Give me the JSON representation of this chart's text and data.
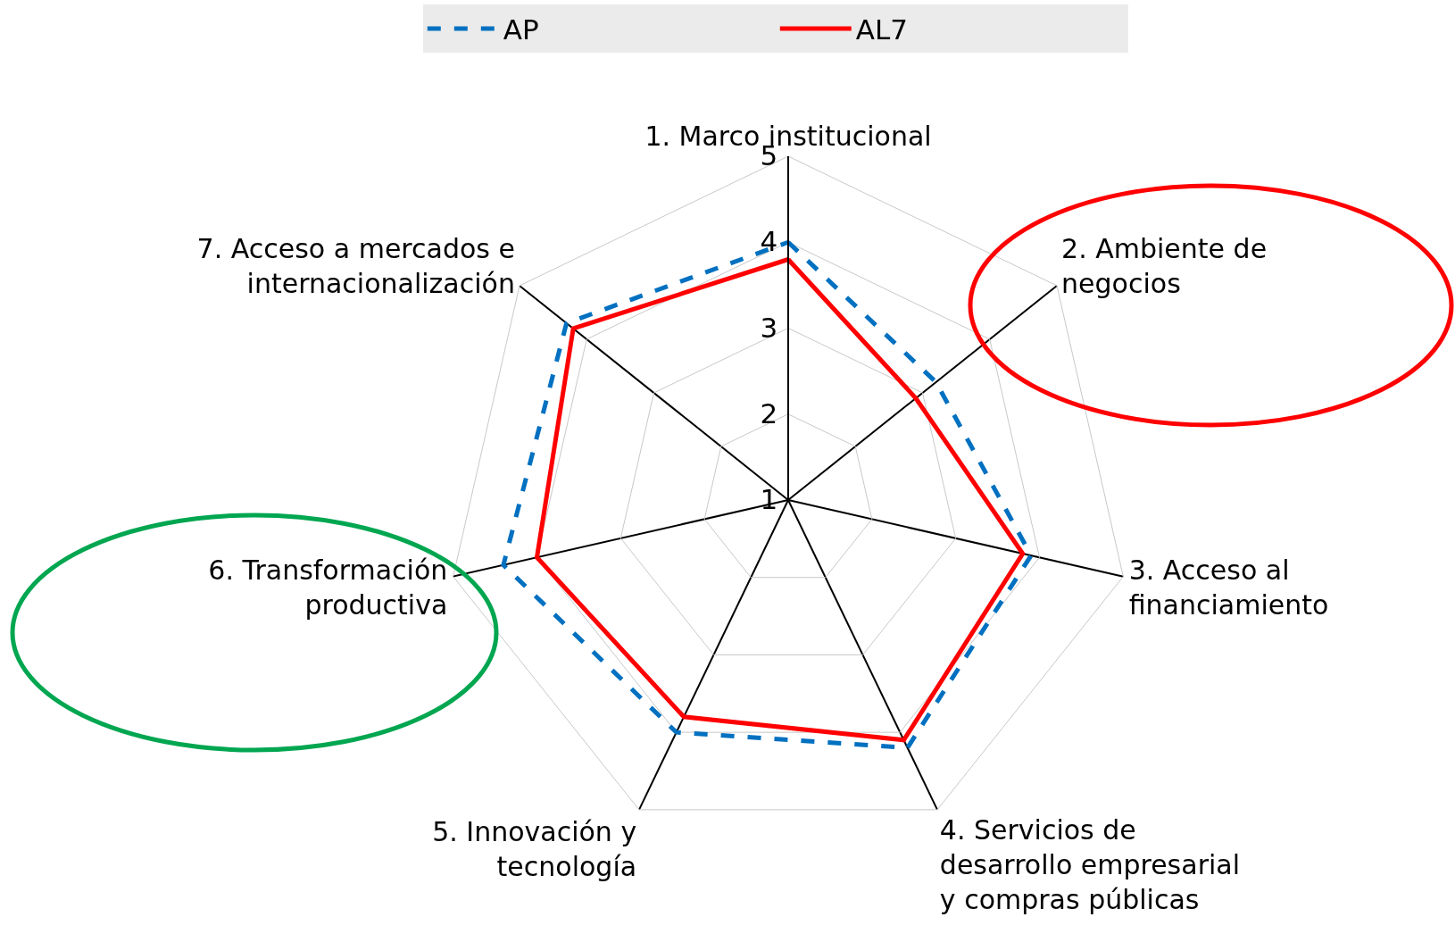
{
  "chart_data": {
    "type": "radar",
    "categories": [
      "1. Marco institucional",
      "2. Ambiente de\nnegocios",
      "3. Acceso al\nfinanciamiento",
      "4. Servicios de\ndesarrollo empresarial\ny compras públicas",
      "5. Innovación y\ntecnología",
      "6. Transformación\nproductiva",
      "7. Acceso a mercados e\ninternacionalización"
    ],
    "series": [
      {
        "name": "AP",
        "color": "#0070c0",
        "line_style": "dashed",
        "values": [
          4.0,
          3.2,
          3.9,
          4.2,
          4.0,
          4.4,
          4.3
        ]
      },
      {
        "name": "AL7",
        "color": "#ff0000",
        "line_style": "solid",
        "values": [
          3.8,
          2.9,
          3.8,
          4.1,
          3.8,
          4.0,
          4.2
        ]
      }
    ],
    "ylim": [
      1,
      5
    ],
    "yticks": [
      1,
      2,
      3,
      4,
      5
    ],
    "grid": true,
    "legend": "top",
    "marker": "none"
  }
}
